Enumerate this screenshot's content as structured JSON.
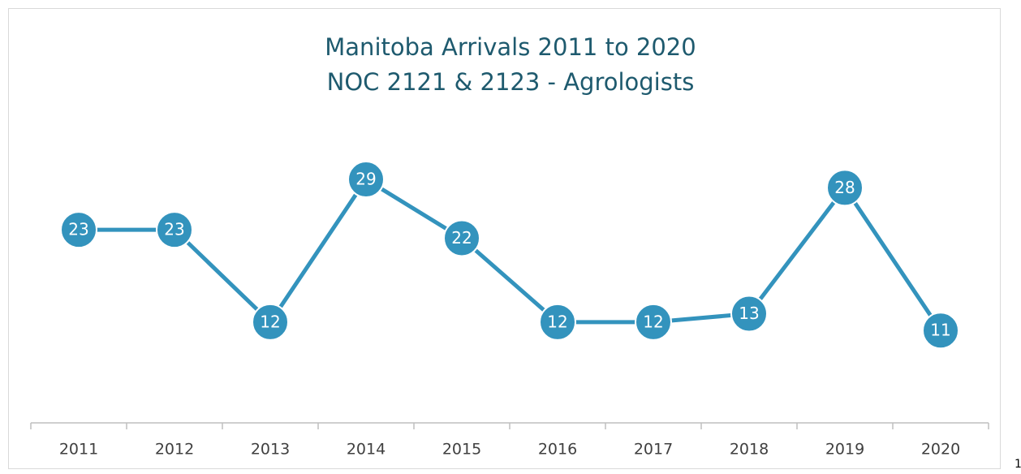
{
  "chart_data": {
    "type": "line",
    "title": "Manitoba Arrivals 2011 to 2020",
    "subtitle": "NOC 2121 & 2123 - Agrologists",
    "categories": [
      "2011",
      "2012",
      "2013",
      "2014",
      "2015",
      "2016",
      "2017",
      "2018",
      "2019",
      "2020"
    ],
    "series": [
      {
        "name": "Arrivals",
        "color": "#3393bd",
        "values": [
          23,
          23,
          12,
          29,
          22,
          12,
          12,
          13,
          28,
          11
        ]
      }
    ],
    "ylim": [
      0,
      35
    ],
    "annotation": "1"
  }
}
